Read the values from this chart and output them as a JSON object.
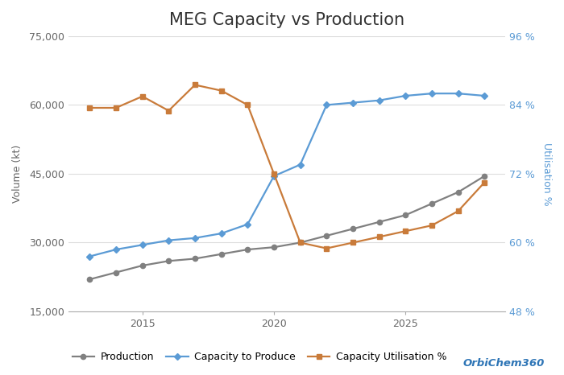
{
  "title": "MEG Capacity vs Production",
  "ylabel_left": "Volume (kt)",
  "ylabel_right": "Utilisation %",
  "background_color": "#ffffff",
  "years": [
    2013,
    2014,
    2015,
    2016,
    2017,
    2018,
    2019,
    2020,
    2021,
    2022,
    2023,
    2024,
    2025,
    2026,
    2027,
    2028
  ],
  "production": [
    22000,
    23500,
    25000,
    26000,
    26500,
    27500,
    28500,
    29000,
    30000,
    31500,
    33000,
    34500,
    36000,
    38500,
    41000,
    44500
  ],
  "capacity": [
    27000,
    28500,
    29500,
    30500,
    31000,
    32000,
    34000,
    44500,
    47000,
    60000,
    60500,
    61000,
    62000,
    62500,
    62500,
    62000
  ],
  "utilisation_pct": [
    83.5,
    83.5,
    85.5,
    83.0,
    87.5,
    86.5,
    84.0,
    72.0,
    60.0,
    59.0,
    60.0,
    61.0,
    62.0,
    63.0,
    65.5,
    70.5
  ],
  "production_color": "#808080",
  "capacity_color": "#5b9bd5",
  "utilisation_color": "#c97b3a",
  "ylim_left": [
    15000,
    75000
  ],
  "ylim_right": [
    48,
    96
  ],
  "yticks_left": [
    15000,
    30000,
    45000,
    60000,
    75000
  ],
  "yticks_right": [
    48,
    60,
    72,
    84,
    96
  ],
  "right_tick_labels": [
    "48 %",
    "60 %",
    "72 %",
    "84 %",
    "96 %"
  ],
  "xlim": [
    2012.2,
    2028.8
  ],
  "xticks": [
    2015,
    2020,
    2025
  ],
  "watermark": "OrbiChem360",
  "title_fontsize": 15,
  "label_fontsize": 9,
  "tick_fontsize": 9,
  "grid_color": "#dddddd",
  "axis_color": "#aaaaaa"
}
